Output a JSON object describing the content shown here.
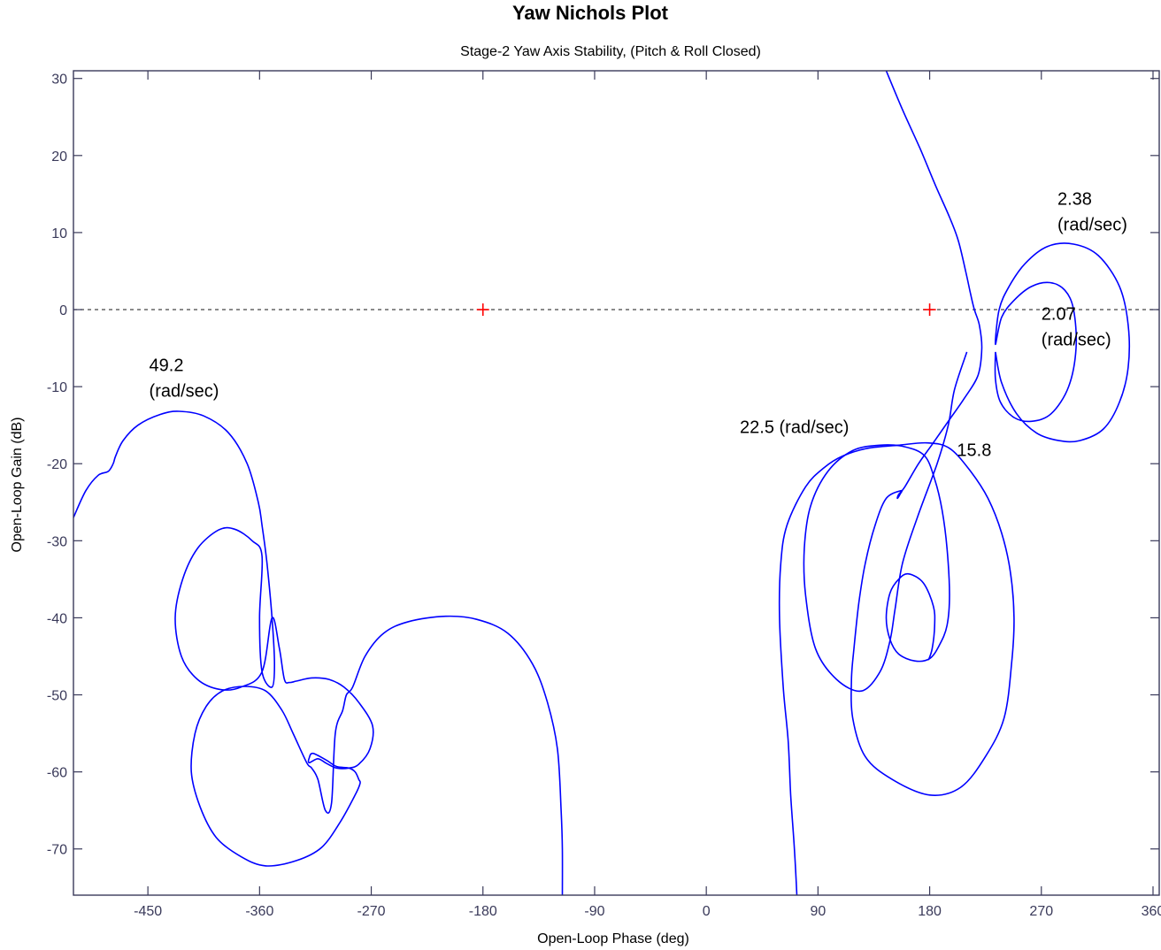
{
  "chart_data": {
    "type": "line",
    "title": "Yaw Nichols Plot",
    "subtitle": "Stage-2 Yaw Axis Stability, (Pitch & Roll Closed)",
    "xlabel": "Open-Loop Phase (deg)",
    "ylabel": "Open-Loop Gain (dB)",
    "xlim": [
      -510,
      365
    ],
    "ylim": [
      -76,
      31
    ],
    "xticks": [
      -450,
      -360,
      -270,
      -180,
      -90,
      0,
      90,
      180,
      270,
      360
    ],
    "xtick_labels": [
      "-450",
      "-360",
      "-270",
      "-180",
      "-90",
      "0",
      "90",
      "180",
      "270",
      "360"
    ],
    "yticks": [
      -70,
      -60,
      -50,
      -40,
      -30,
      -20,
      -10,
      0,
      10,
      20,
      30
    ],
    "ytick_labels": [
      "-70",
      "-60",
      "-50",
      "-40",
      "-30",
      "-20",
      "-10",
      "0",
      "10",
      "20",
      "30"
    ],
    "grid": false,
    "colors": {
      "curve": "#0000ff",
      "marker": "#ff0000",
      "reference": "#444444",
      "axes": "#3a3a5a"
    },
    "zero_db_line": {
      "y": 0
    },
    "critical_points": [
      {
        "x": -180,
        "y": 0
      },
      {
        "x": 180,
        "y": 0
      }
    ],
    "annotations": [
      {
        "lines": [
          "49.2",
          "(rad/sec)"
        ],
        "x": -449,
        "y": -8
      },
      {
        "lines": [
          "22.5 (rad/sec)"
        ],
        "x": 27,
        "y": -16
      },
      {
        "lines": [
          "15.8"
        ],
        "x": 202,
        "y": -19
      },
      {
        "lines": [
          "2.38",
          "(rad/sec)"
        ],
        "x": 283,
        "y": 13.6
      },
      {
        "lines": [
          "2.07",
          "(rad/sec)"
        ],
        "x": 270,
        "y": -1.3
      }
    ],
    "series": [
      {
        "points": [
          [
            -510,
            -27
          ],
          [
            -500,
            -23.5
          ],
          [
            -490,
            -21.5
          ],
          [
            -482,
            -21
          ],
          [
            -478,
            -20
          ],
          [
            -476,
            -19
          ],
          [
            -470,
            -17
          ],
          [
            -458,
            -15
          ],
          [
            -440,
            -13.6
          ],
          [
            -425,
            -13.2
          ],
          [
            -405,
            -13.8
          ],
          [
            -385,
            -16
          ],
          [
            -370,
            -20
          ],
          [
            -361,
            -25
          ],
          [
            -358,
            -28
          ],
          [
            -354,
            -33
          ],
          [
            -350,
            -40
          ],
          [
            -348,
            -46
          ],
          [
            -350,
            -49
          ],
          [
            -358,
            -47
          ],
          [
            -360,
            -40
          ],
          [
            -358,
            -32
          ],
          [
            -366,
            -30
          ],
          [
            -380,
            -28.5
          ],
          [
            -393,
            -28.6
          ],
          [
            -410,
            -31
          ],
          [
            -422,
            -35
          ],
          [
            -428,
            -40
          ],
          [
            -423,
            -45
          ],
          [
            -410,
            -48
          ],
          [
            -392,
            -49.3
          ],
          [
            -375,
            -49
          ],
          [
            -358,
            -47
          ],
          [
            -350,
            -40
          ],
          [
            -344,
            -44
          ],
          [
            -340,
            -48
          ],
          [
            -336,
            -48.4
          ],
          [
            -330,
            -48.2
          ],
          [
            -318,
            -47.8
          ],
          [
            -304,
            -48
          ],
          [
            -292,
            -49
          ],
          [
            -280,
            -51
          ],
          [
            -269,
            -54
          ],
          [
            -271,
            -57
          ],
          [
            -280,
            -59
          ],
          [
            -288,
            -59.5
          ],
          [
            -298,
            -59.5
          ],
          [
            -306,
            -58.9
          ],
          [
            -313,
            -58.3
          ],
          [
            -320,
            -58.8
          ],
          [
            -320,
            -58.2
          ],
          [
            -317,
            -57.6
          ],
          [
            -306,
            -58.5
          ],
          [
            -298,
            -59.3
          ],
          [
            -288,
            -59.5
          ],
          [
            -283,
            -60
          ],
          [
            -280,
            -61
          ],
          [
            -279,
            -61.5
          ],
          [
            -283,
            -63
          ],
          [
            -295,
            -66.5
          ],
          [
            -310,
            -69.8
          ],
          [
            -330,
            -71.5
          ],
          [
            -355,
            -72.2
          ],
          [
            -375,
            -71
          ],
          [
            -395,
            -68.5
          ],
          [
            -408,
            -64.5
          ],
          [
            -415,
            -60
          ],
          [
            -412,
            -55
          ],
          [
            -403,
            -51.5
          ],
          [
            -390,
            -49.5
          ],
          [
            -372,
            -48.9
          ],
          [
            -355,
            -49.5
          ],
          [
            -342,
            -52
          ],
          [
            -333,
            -55
          ],
          [
            -322,
            -58.8
          ],
          [
            -318,
            -59.5
          ],
          [
            -313,
            -61
          ],
          [
            -307,
            -65
          ],
          [
            -302,
            -64
          ],
          [
            -299,
            -55
          ],
          [
            -293,
            -52
          ],
          [
            -290,
            -50
          ],
          [
            -285,
            -49
          ],
          [
            -275,
            -45
          ],
          [
            -260,
            -42
          ],
          [
            -240,
            -40.5
          ],
          [
            -210,
            -39.8
          ],
          [
            -185,
            -40.2
          ],
          [
            -160,
            -42
          ],
          [
            -140,
            -46
          ],
          [
            -128,
            -51
          ],
          [
            -120,
            -57
          ],
          [
            -117,
            -65
          ],
          [
            -116,
            -70
          ],
          [
            -116,
            -76
          ]
        ]
      },
      {
        "points": [
          [
            145,
            31
          ],
          [
            158,
            26
          ],
          [
            172,
            21
          ],
          [
            185,
            16
          ],
          [
            196,
            12
          ],
          [
            203,
            9
          ],
          [
            209,
            5
          ],
          [
            213,
            2
          ],
          [
            216,
            0
          ],
          [
            220,
            -2
          ],
          [
            222,
            -5
          ],
          [
            219,
            -8.5
          ],
          [
            208,
            -11.5
          ],
          [
            195,
            -14.5
          ],
          [
            182,
            -17.5
          ],
          [
            171,
            -20
          ],
          [
            160,
            -23
          ],
          [
            155,
            -24
          ],
          [
            154,
            -24.5
          ],
          [
            156,
            -24
          ],
          [
            157,
            -23.5
          ],
          [
            145,
            -24.5
          ],
          [
            136,
            -28
          ],
          [
            128,
            -33
          ],
          [
            123,
            -38
          ],
          [
            119,
            -44
          ],
          [
            117,
            -48
          ],
          [
            118,
            -53
          ],
          [
            128,
            -58
          ],
          [
            150,
            -61
          ],
          [
            180,
            -63
          ],
          [
            205,
            -62
          ],
          [
            225,
            -58
          ],
          [
            240,
            -53
          ],
          [
            246,
            -46
          ],
          [
            248,
            -40
          ],
          [
            245,
            -34
          ],
          [
            238,
            -29
          ],
          [
            227,
            -24.5
          ],
          [
            213,
            -21
          ],
          [
            196,
            -18
          ],
          [
            178,
            -17.3
          ],
          [
            155,
            -17.6
          ],
          [
            130,
            -18
          ],
          [
            110,
            -19
          ],
          [
            95,
            -20.5
          ],
          [
            80,
            -23
          ],
          [
            65,
            -28
          ],
          [
            60,
            -33
          ],
          [
            59,
            -40
          ],
          [
            62,
            -49
          ],
          [
            66,
            -56
          ],
          [
            68,
            -63
          ],
          [
            71,
            -70
          ],
          [
            73,
            -76
          ]
        ]
      },
      {
        "points": [
          [
            210,
            -5.5
          ],
          [
            200,
            -10.4
          ],
          [
            195,
            -15
          ],
          [
            186,
            -20
          ],
          [
            170,
            -27
          ],
          [
            158,
            -33
          ],
          [
            152,
            -39
          ],
          [
            148,
            -43
          ],
          [
            140,
            -47
          ],
          [
            125,
            -49.5
          ],
          [
            105,
            -48
          ],
          [
            88,
            -44
          ],
          [
            80,
            -37
          ],
          [
            79,
            -31
          ],
          [
            84,
            -25.5
          ],
          [
            98,
            -21
          ],
          [
            118,
            -18.3
          ],
          [
            140,
            -17.6
          ],
          [
            160,
            -17.8
          ],
          [
            176,
            -19
          ],
          [
            184,
            -22
          ],
          [
            190,
            -26
          ],
          [
            194,
            -31
          ],
          [
            196,
            -37
          ],
          [
            194,
            -41
          ],
          [
            188,
            -43.5
          ],
          [
            180,
            -45.3
          ],
          [
            168,
            -45.6
          ],
          [
            155,
            -44.7
          ],
          [
            148,
            -42.8
          ],
          [
            145,
            -40
          ],
          [
            148,
            -36.8
          ],
          [
            155,
            -35
          ],
          [
            163,
            -34.3
          ],
          [
            175,
            -35.5
          ],
          [
            183,
            -38.5
          ],
          [
            184,
            -41
          ],
          [
            182,
            -44
          ],
          [
            179,
            -45.5
          ]
        ]
      },
      {
        "points": [
          [
            233,
            -5.5
          ],
          [
            233,
            -9
          ],
          [
            237,
            -12
          ],
          [
            248,
            -14
          ],
          [
            262,
            -14.5
          ],
          [
            278,
            -13.5
          ],
          [
            292,
            -10
          ],
          [
            298,
            -5
          ],
          [
            296,
            0
          ],
          [
            289,
            2.5
          ],
          [
            277,
            3.5
          ],
          [
            262,
            3
          ],
          [
            248,
            1.2
          ],
          [
            238,
            -1
          ],
          [
            233,
            -4.5
          ],
          [
            236,
            0
          ],
          [
            244,
            3
          ],
          [
            257,
            6
          ],
          [
            275,
            8.2
          ],
          [
            296,
            8.5
          ],
          [
            316,
            7
          ],
          [
            333,
            3
          ],
          [
            340,
            -2
          ],
          [
            340,
            -7.5
          ],
          [
            333,
            -12
          ],
          [
            320,
            -15.5
          ],
          [
            301,
            -17
          ],
          [
            284,
            -17
          ],
          [
            266,
            -16
          ],
          [
            250,
            -13.5
          ],
          [
            238,
            -9.5
          ],
          [
            233,
            -5.5
          ]
        ]
      }
    ]
  }
}
